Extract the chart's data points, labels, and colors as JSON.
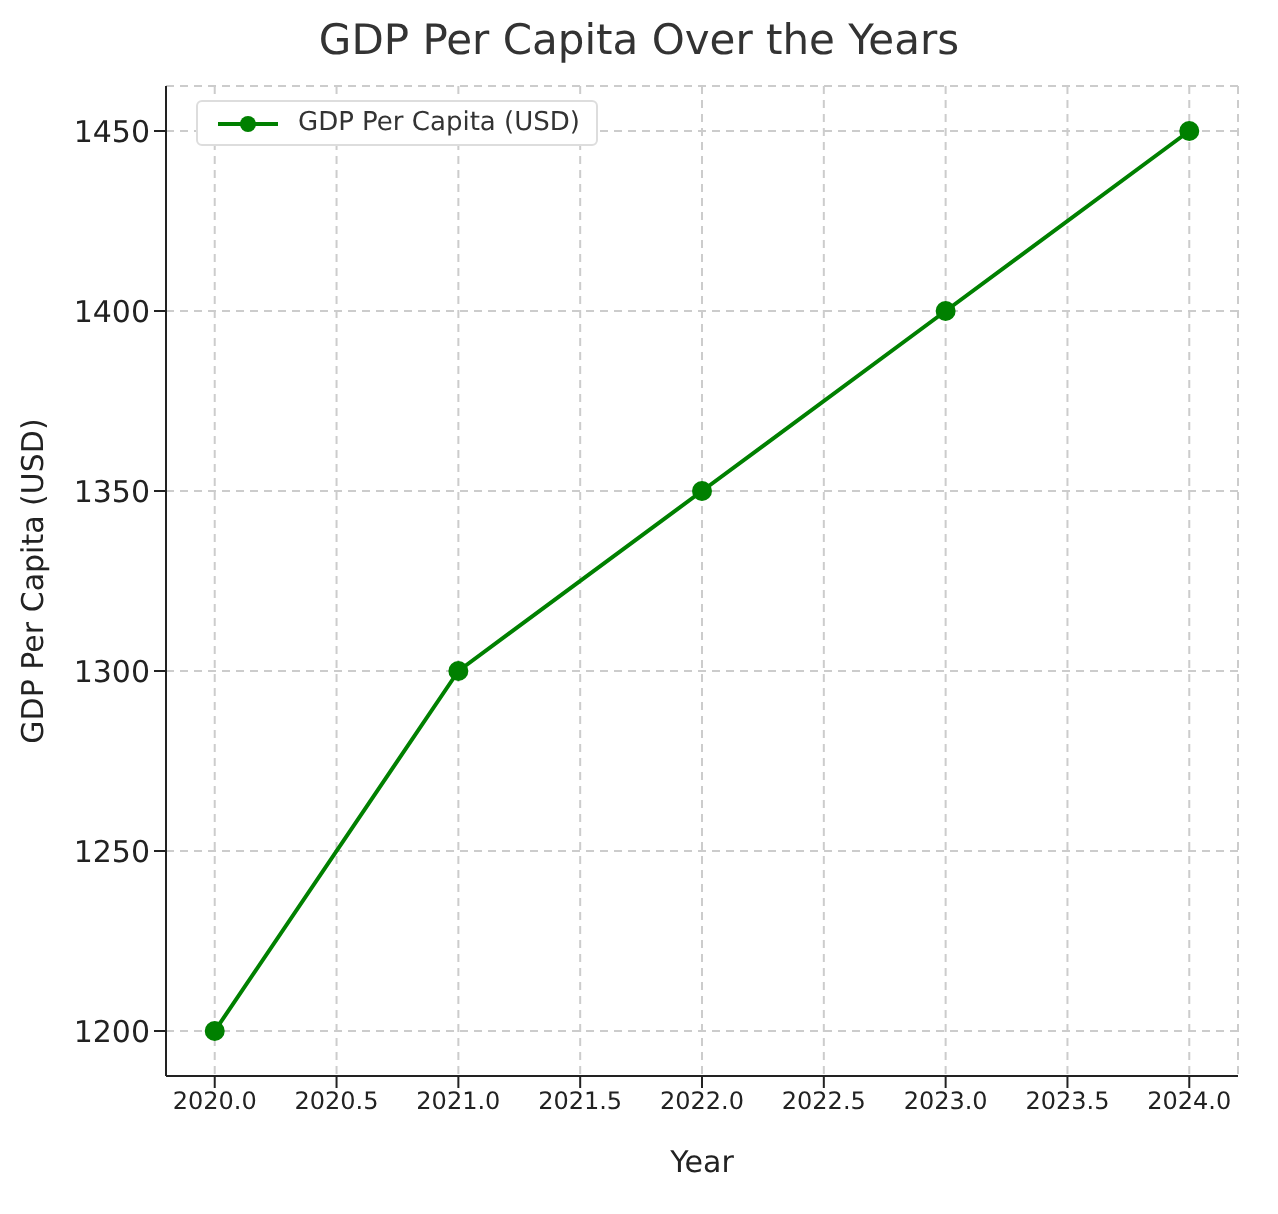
{
  "chart_data": {
    "type": "line",
    "title": "GDP Per Capita Over the Years",
    "xlabel": "Year",
    "ylabel": "GDP Per Capita (USD)",
    "x": [
      2020,
      2021,
      2022,
      2023,
      2024
    ],
    "series": [
      {
        "name": "GDP Per Capita (USD)",
        "color": "#008000",
        "values": [
          1200,
          1300,
          1350,
          1400,
          1450
        ]
      }
    ],
    "xlim": [
      2019.8,
      2024.2
    ],
    "xticks": [
      {
        "value": 2020,
        "label": "2020.0"
      },
      {
        "value": 2020.5,
        "label": "2020.5"
      },
      {
        "value": 2021,
        "label": "2021.0"
      },
      {
        "value": 2021.5,
        "label": "2021.5"
      },
      {
        "value": 2022,
        "label": "2022.0"
      },
      {
        "value": 2022.5,
        "label": "2022.5"
      },
      {
        "value": 2023,
        "label": "2023.0"
      },
      {
        "value": 2023.5,
        "label": "2023.5"
      },
      {
        "value": 2024,
        "label": "2024.0"
      }
    ],
    "ylim": [
      1187.5,
      1462.5
    ],
    "yticks": [
      1200,
      1250,
      1300,
      1350,
      1400,
      1450
    ],
    "grid": true,
    "legend": "top left",
    "marker": "circle",
    "line_style": "solid"
  }
}
